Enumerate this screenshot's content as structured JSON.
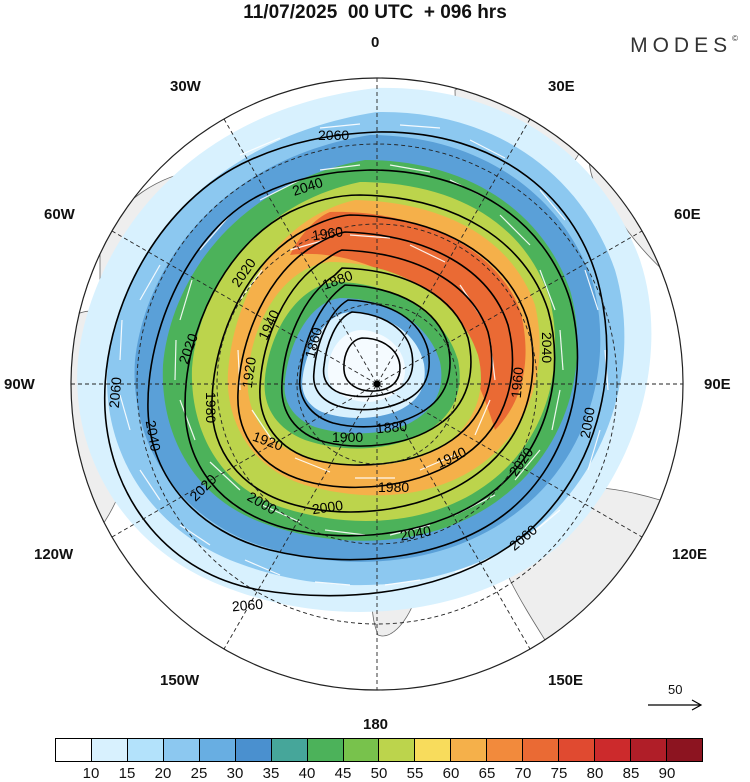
{
  "header": {
    "title": "11/07/2025  00 UTC  + 096 hrs",
    "brand": "MODES",
    "brand_mark": "©"
  },
  "longitude_labels": {
    "lon_0": "0",
    "lon_30e": "30E",
    "lon_60e": "60E",
    "lon_90e": "90E",
    "lon_120e": "120E",
    "lon_150e": "150E",
    "lon_180": "180",
    "lon_150w": "150W",
    "lon_120w": "120W",
    "lon_90w": "90W",
    "lon_60w": "60W",
    "lon_30w": "30W"
  },
  "contour_labels": {
    "c2060_top": "2060",
    "c2040_top": "2040",
    "c2020_top": "2020",
    "c1960_top": "1960",
    "c1880_upper": "1880",
    "c1860_left": "1860",
    "c1940_left": "1940",
    "c2020_left": "2020",
    "c1920_left": "1920",
    "c1980_left": "1980",
    "c2060_left": "2060",
    "c2040_left": "2040",
    "c1920_lower": "1920",
    "c1900_lower": "1900",
    "c1880_lower": "1880",
    "c1940_lower": "1940",
    "c1980_lower": "1980",
    "c2000_lower": "2000",
    "c2000_lower2": "2000",
    "c2020_lower": "2020",
    "c1960_right": "1960",
    "c2040_right": "2040",
    "c2060_right": "2060",
    "c2020_right": "2020",
    "c2040_bottom": "2040",
    "c2060_bottom": "2060",
    "c2060_br": "2060"
  },
  "reference_vector": {
    "label": "50"
  },
  "colorbar": {
    "colors": [
      "#ffffff",
      "#d8f1fe",
      "#b3e2fb",
      "#8cc8f0",
      "#68aee2",
      "#4a90cf",
      "#46a69a",
      "#4cb25a",
      "#78c24c",
      "#bcd44c",
      "#f8dc5c",
      "#f5b04a",
      "#f28a3c",
      "#ea6a34",
      "#e04a30",
      "#cc2a2c",
      "#b01e28",
      "#8c1420"
    ],
    "ticks": [
      "10",
      "15",
      "20",
      "25",
      "30",
      "35",
      "40",
      "45",
      "50",
      "55",
      "60",
      "65",
      "70",
      "75",
      "80",
      "85",
      "90"
    ]
  }
}
